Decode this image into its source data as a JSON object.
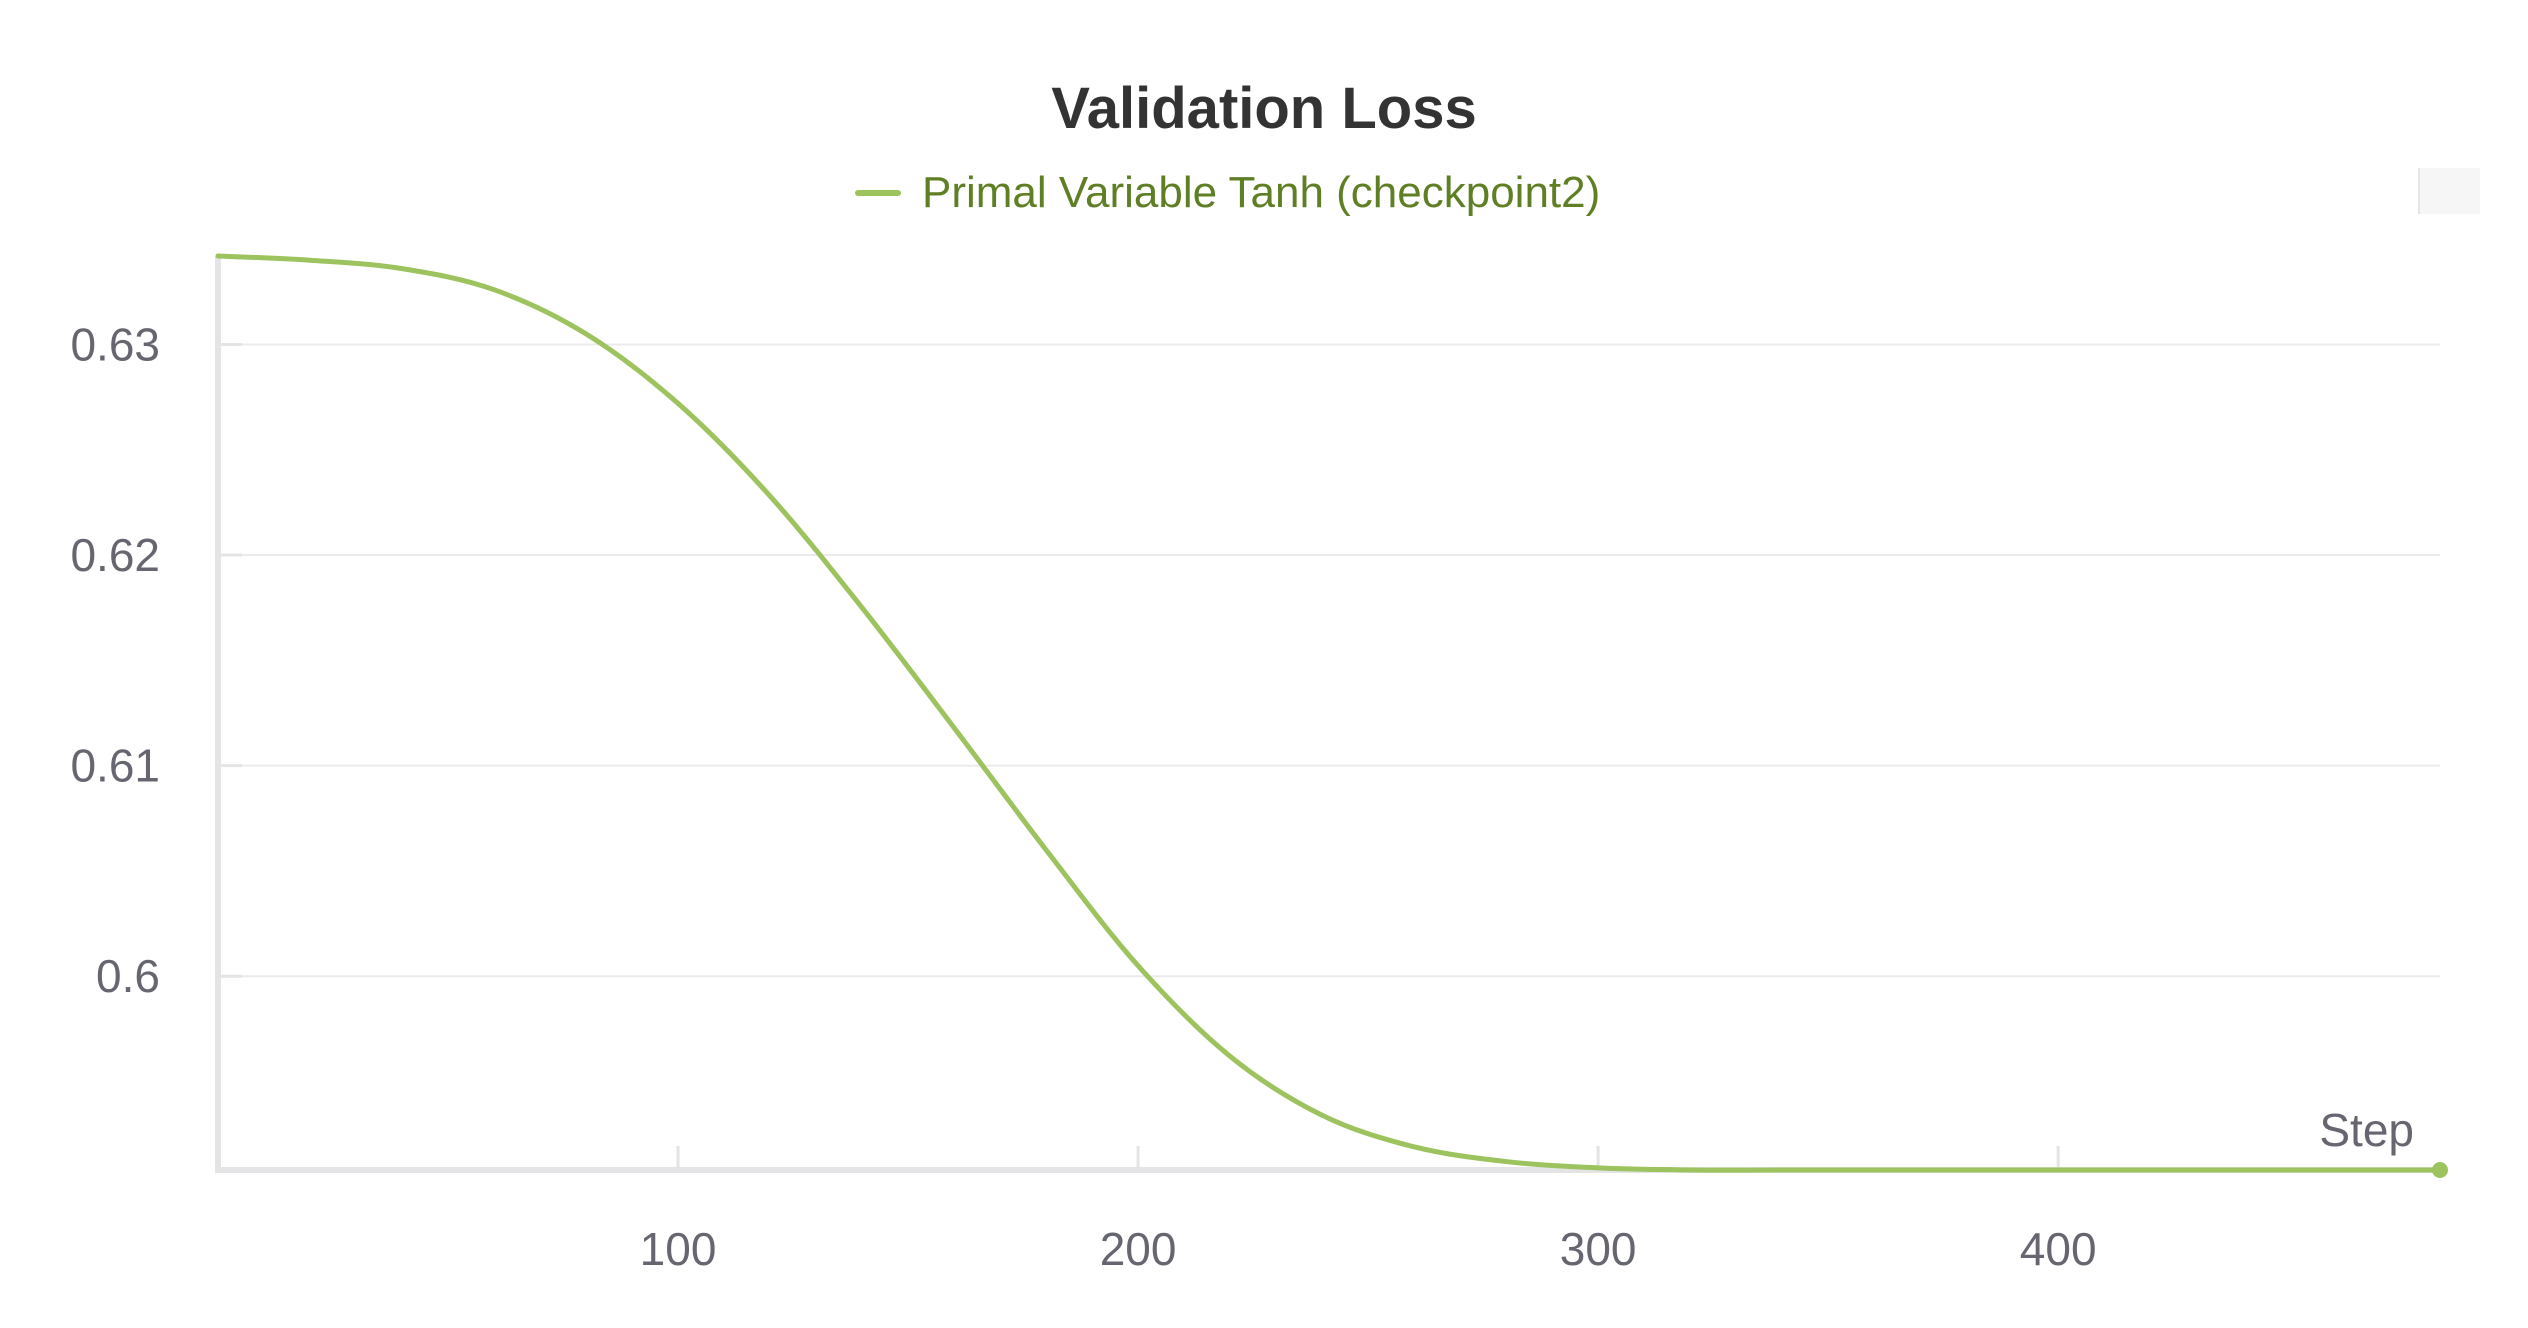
{
  "chart_data": {
    "type": "line",
    "title": "Validation Loss",
    "xlabel": "Step",
    "ylabel": "",
    "xlim": [
      0,
      483
    ],
    "ylim": [
      0.5908,
      0.6342
    ],
    "x_ticks": [
      100,
      200,
      300,
      400
    ],
    "x_tick_labels": [
      "100",
      "200",
      "300",
      "400"
    ],
    "y_ticks": [
      0.6,
      0.61,
      0.62,
      0.63
    ],
    "y_tick_labels": [
      "0.6",
      "0.61",
      "0.62",
      "0.63"
    ],
    "grid": true,
    "legend_position": "top-center",
    "series": [
      {
        "name": "Primal Variable Tanh (checkpoint2)",
        "color": "#9cc35d",
        "legend_text_color": "#5f7f25",
        "x": [
          0,
          20,
          40,
          60,
          80,
          100,
          120,
          140,
          160,
          180,
          200,
          220,
          240,
          260,
          280,
          300,
          320,
          340,
          360,
          380,
          400,
          420,
          440,
          460,
          483
        ],
        "y": [
          0.6342,
          0.634,
          0.6336,
          0.6326,
          0.6305,
          0.6272,
          0.6228,
          0.6175,
          0.6118,
          0.606,
          0.6005,
          0.5962,
          0.5934,
          0.5919,
          0.5912,
          0.5909,
          0.5908,
          0.5908,
          0.5908,
          0.5908,
          0.5908,
          0.5908,
          0.5908,
          0.5908,
          0.5908
        ]
      }
    ]
  }
}
